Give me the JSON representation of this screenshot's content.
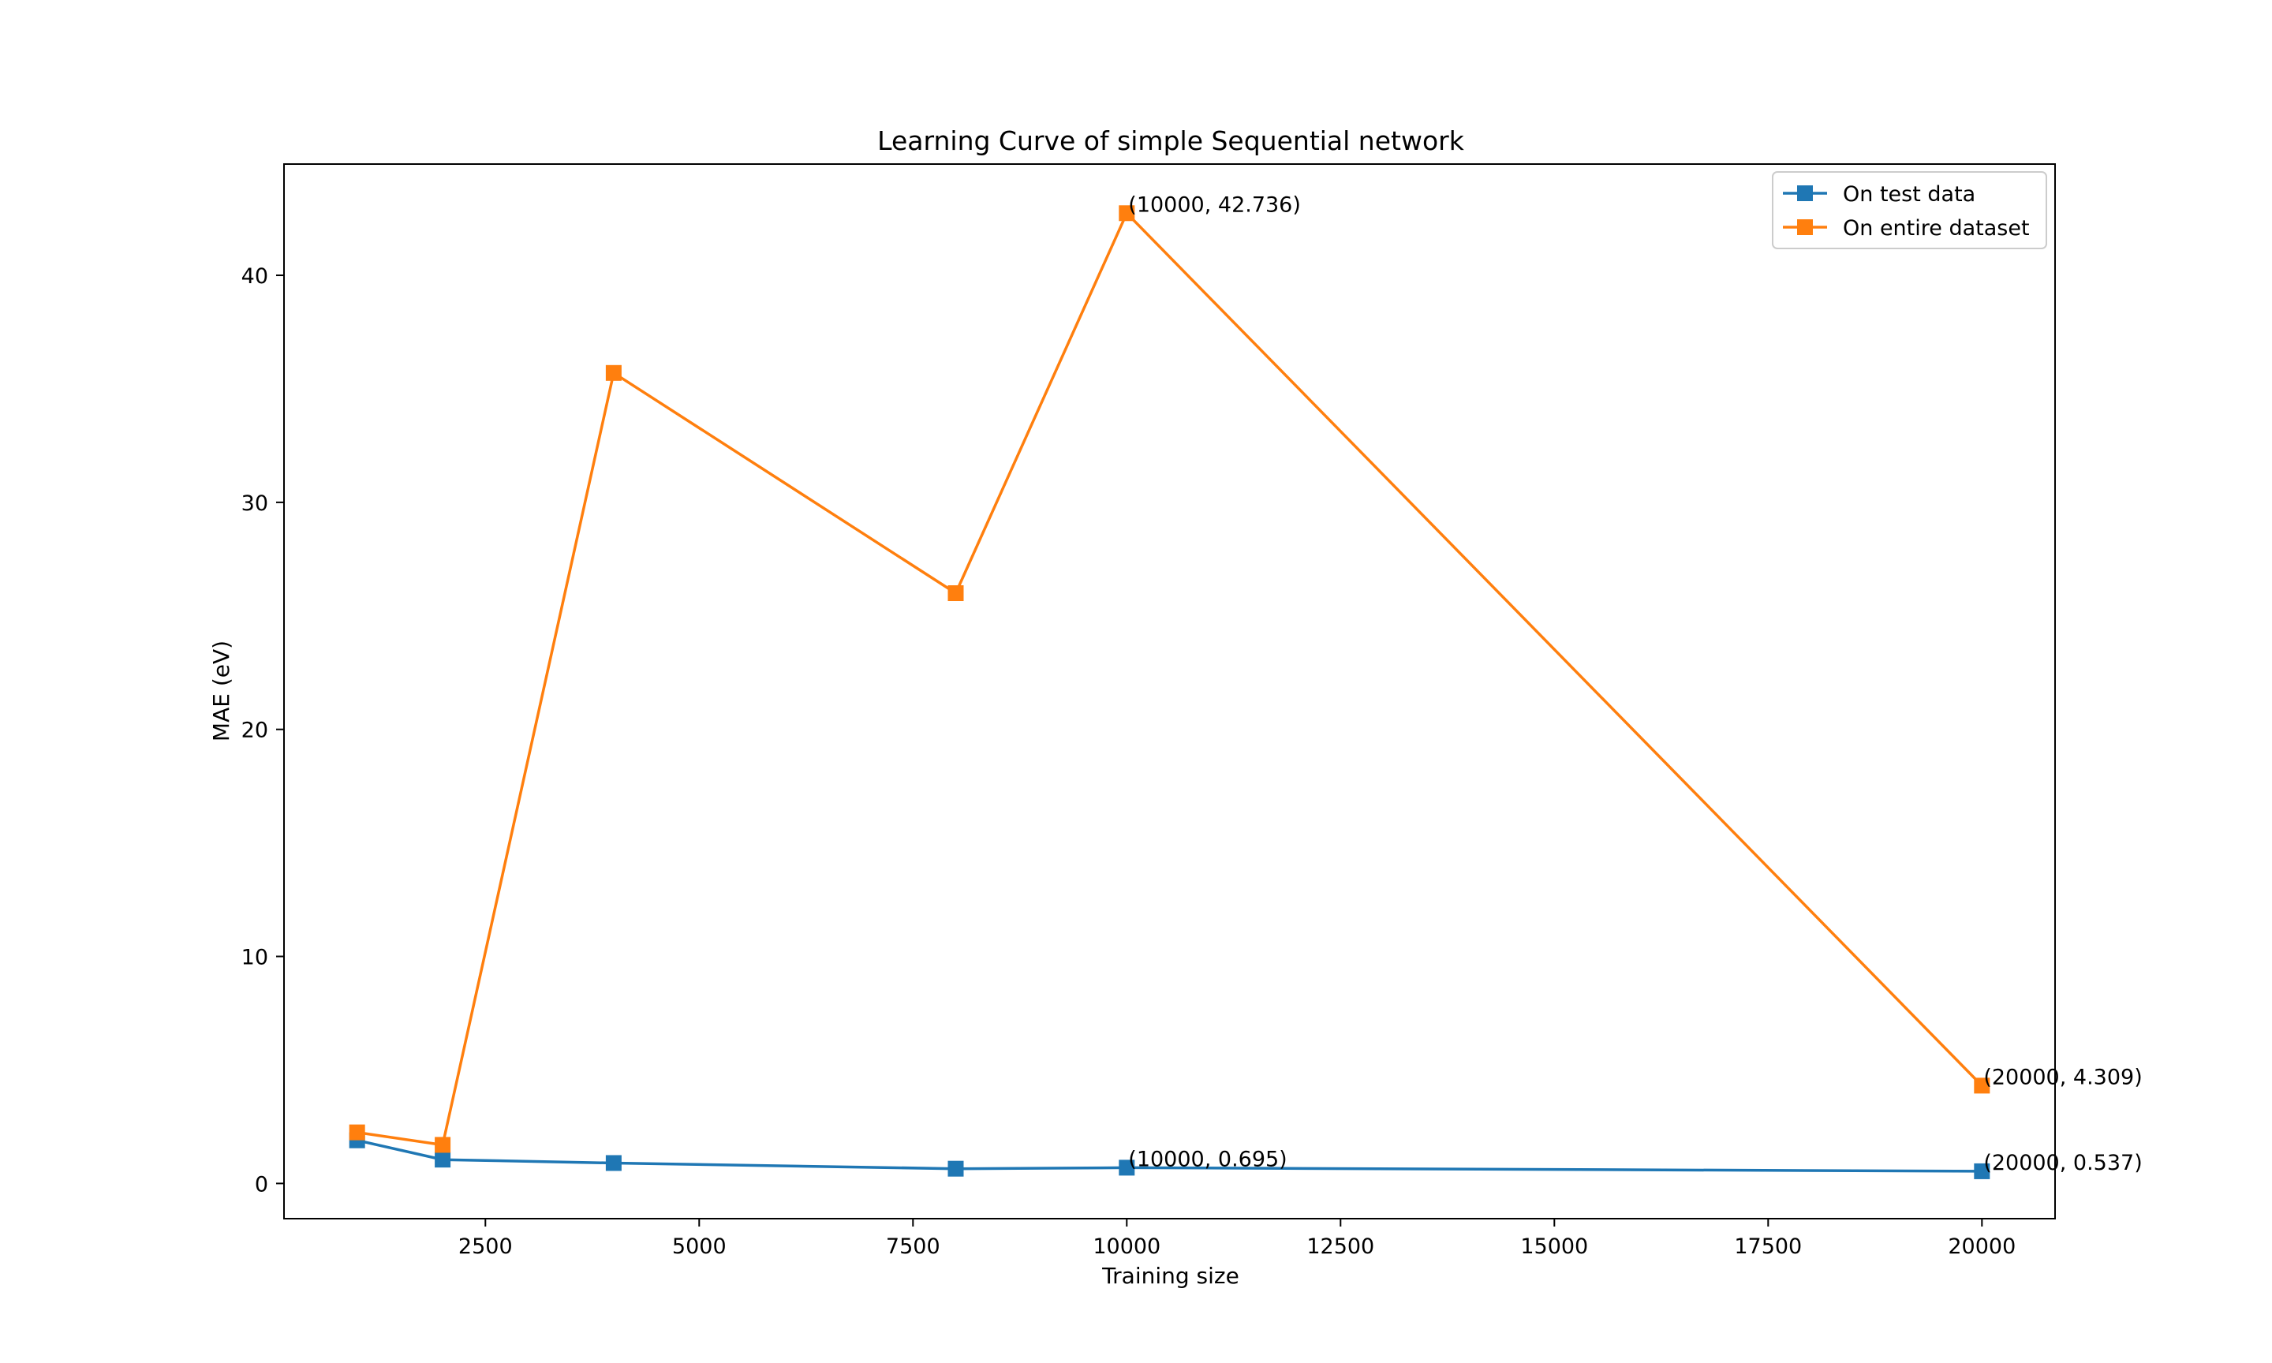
{
  "chart_data": {
    "type": "line",
    "title": "Learning Curve of simple Sequential network",
    "xlabel": "Training size",
    "ylabel": "MAE (eV)",
    "xlim": [
      1000,
      20000
    ],
    "ylim": [
      -1.55,
      44.9
    ],
    "x": [
      1000,
      2000,
      4000,
      8000,
      10000,
      20000
    ],
    "xticks": [
      2500,
      5000,
      7500,
      10000,
      12500,
      15000,
      17500,
      20000
    ],
    "yticks": [
      0,
      10,
      20,
      30,
      40
    ],
    "grid": false,
    "legend_position": "top-right",
    "marker": "square",
    "series": [
      {
        "name": "On test data",
        "color": "#1f77b4",
        "values": [
          1.9,
          1.05,
          0.9,
          0.65,
          0.695,
          0.537
        ]
      },
      {
        "name": "On entire dataset",
        "color": "#ff7f0e",
        "values": [
          2.25,
          1.7,
          35.7,
          26.0,
          42.736,
          4.309
        ]
      }
    ],
    "annotations": [
      {
        "series": 1,
        "x": 10000,
        "y": 42.736,
        "text": "(10000, 42.736)"
      },
      {
        "series": 1,
        "x": 20000,
        "y": 4.309,
        "text": "(20000, 4.309)"
      },
      {
        "series": 0,
        "x": 10000,
        "y": 0.695,
        "text": "(10000, 0.695)"
      },
      {
        "series": 0,
        "x": 20000,
        "y": 0.537,
        "text": "(20000, 0.537)"
      }
    ]
  }
}
